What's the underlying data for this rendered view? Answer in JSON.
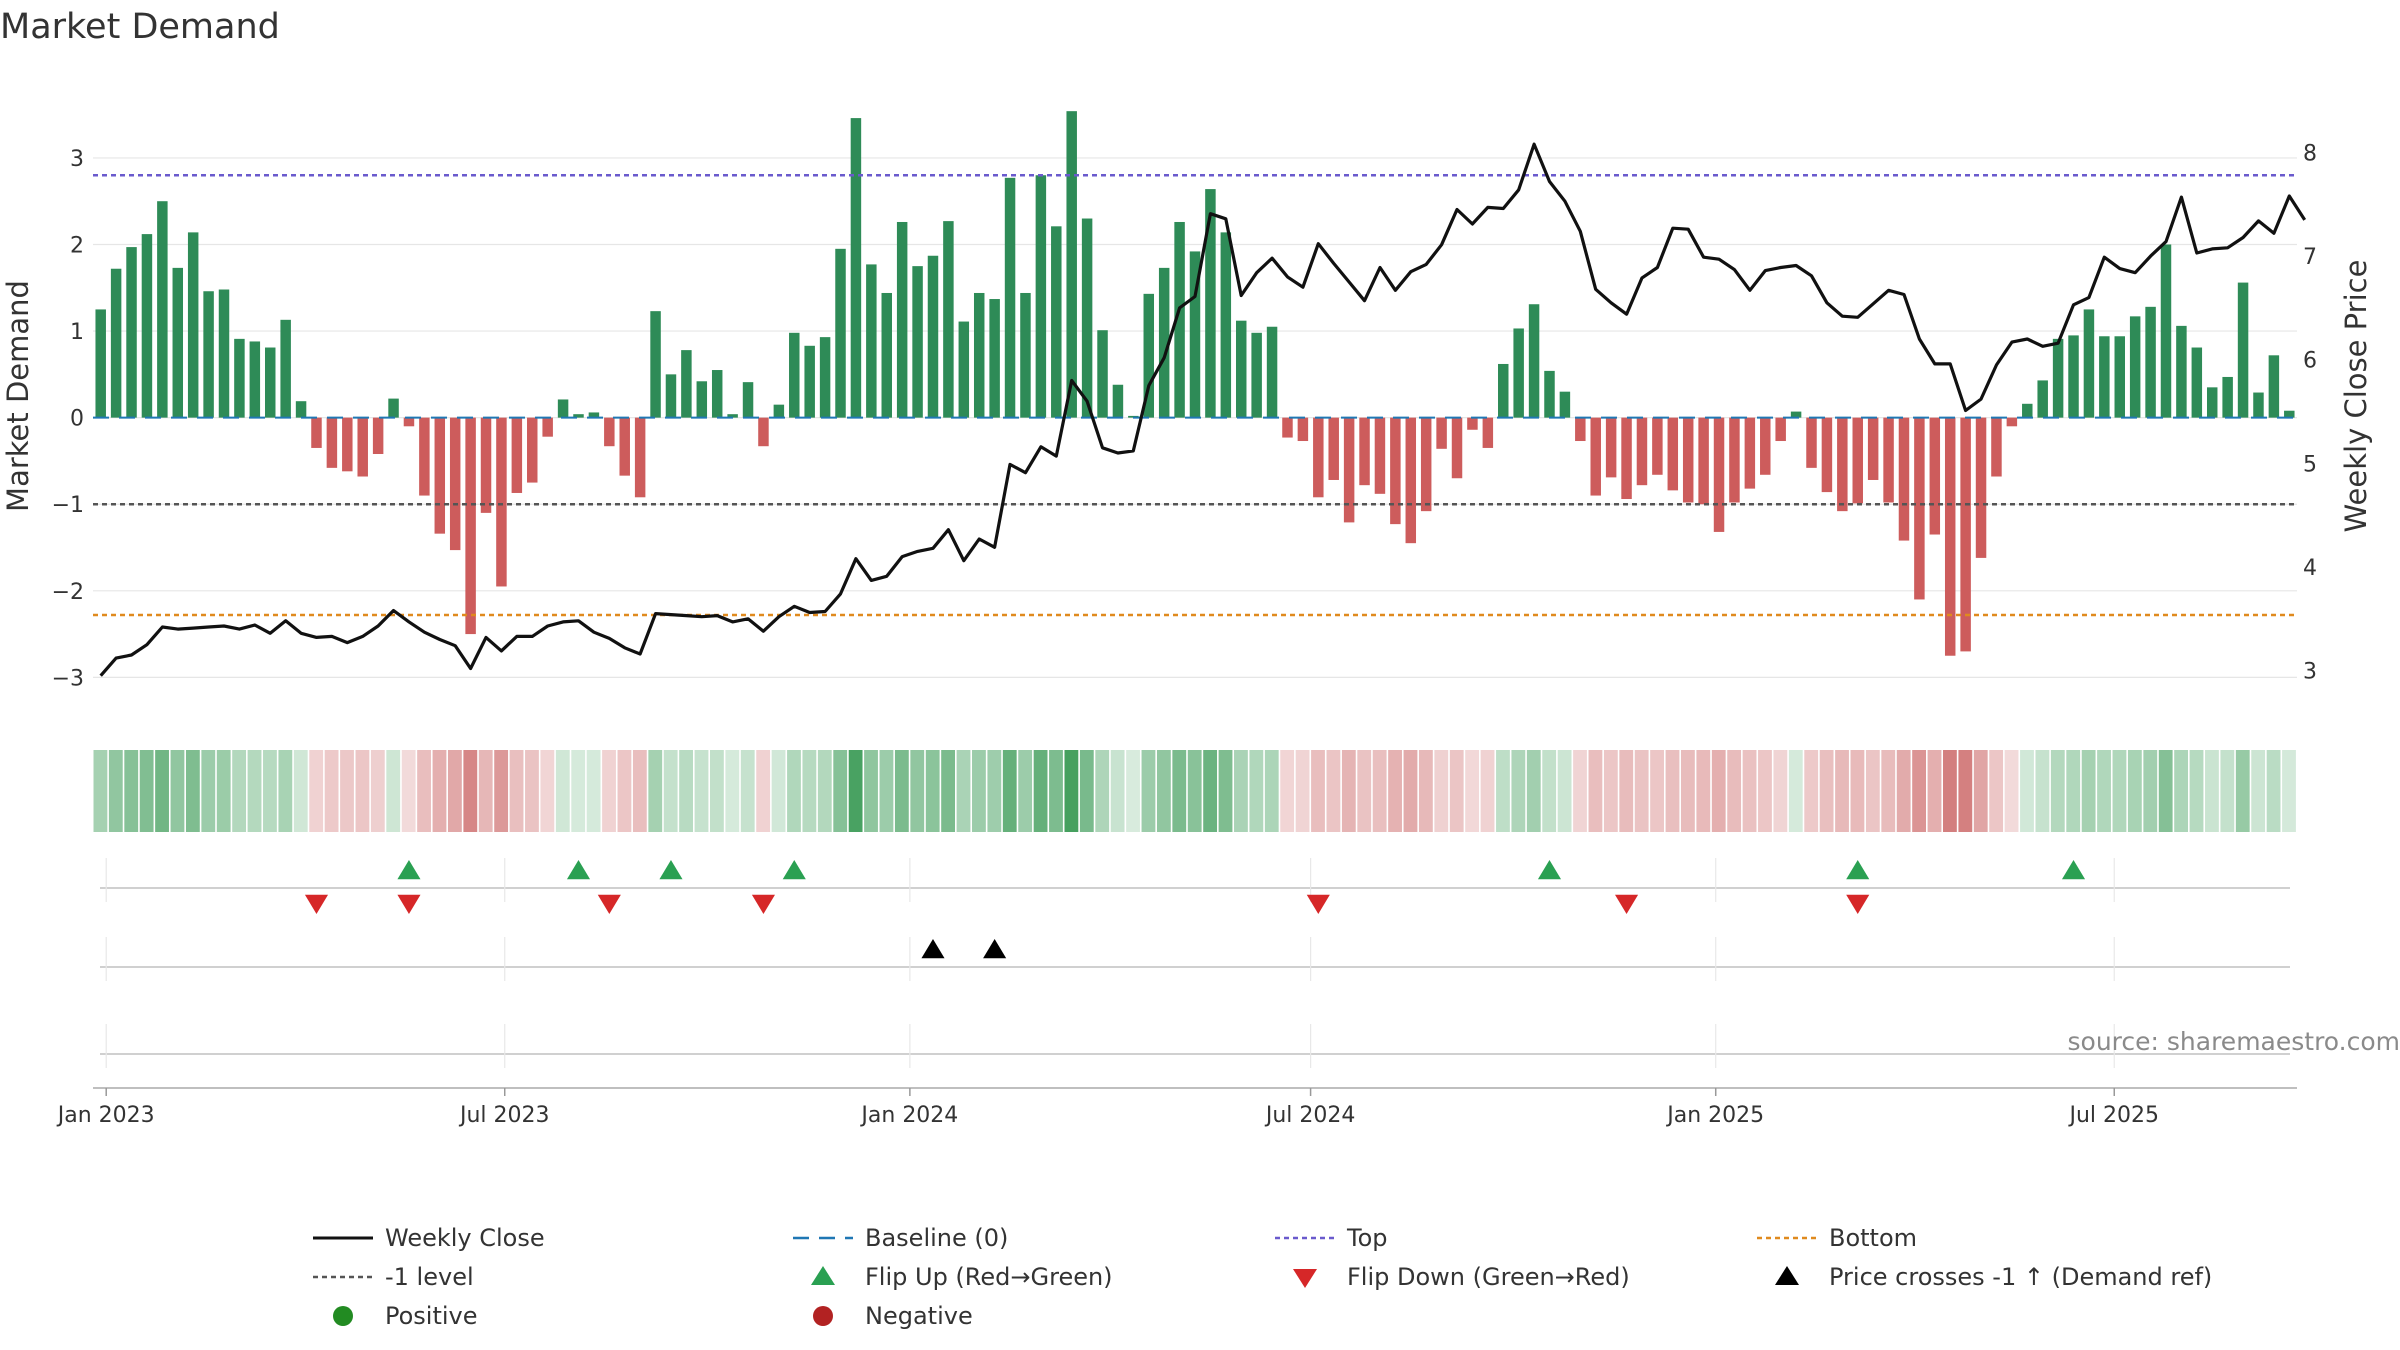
{
  "chart_data": {
    "type": "bar",
    "title": "Market Demand",
    "ylabel": "Market Demand",
    "ylabel_right": "Weekly Close Price",
    "ylim": [
      -3.4,
      3.9
    ],
    "ylim_right": [
      2.6,
      8.7
    ],
    "yticks": [
      -3,
      -2,
      -1,
      0,
      1,
      2,
      3
    ],
    "yticks_labels": [
      "−3",
      "−2",
      "−1",
      "0",
      "1",
      "2",
      "3"
    ],
    "yticks_right": [
      3,
      4,
      5,
      6,
      7,
      8
    ],
    "x_start_date": "2022-12-26",
    "x_end_date": "2025-09-22",
    "xticks": [
      {
        "date": "2023-01-01",
        "label": "Jan 2023"
      },
      {
        "date": "2023-07-01",
        "label": "Jul 2023"
      },
      {
        "date": "2024-01-01",
        "label": "Jan 2024"
      },
      {
        "date": "2024-07-01",
        "label": "Jul 2024"
      },
      {
        "date": "2025-01-01",
        "label": "Jan 2025"
      },
      {
        "date": "2025-07-01",
        "label": "Jul 2025"
      }
    ],
    "demand": [
      1.25,
      1.72,
      1.97,
      2.12,
      2.5,
      1.73,
      2.14,
      1.46,
      1.48,
      0.91,
      0.88,
      0.81,
      1.13,
      0.19,
      -0.35,
      -0.58,
      -0.62,
      -0.68,
      -0.42,
      0.22,
      -0.1,
      -0.9,
      -1.34,
      -1.53,
      -2.5,
      -1.1,
      -1.95,
      -0.87,
      -0.75,
      -0.22,
      0.21,
      0.04,
      0.06,
      -0.33,
      -0.67,
      -0.92,
      1.23,
      0.5,
      0.78,
      0.42,
      0.55,
      0.04,
      0.41,
      -0.33,
      0.15,
      0.98,
      0.83,
      0.93,
      1.95,
      3.46,
      1.77,
      1.44,
      2.26,
      1.75,
      1.87,
      2.27,
      1.11,
      1.44,
      1.37,
      2.77,
      1.44,
      2.8,
      2.21,
      3.54,
      2.3,
      1.01,
      0.38,
      0.02,
      1.43,
      1.73,
      2.26,
      1.92,
      2.64,
      2.14,
      1.12,
      0.98,
      1.05,
      -0.23,
      -0.27,
      -0.92,
      -0.72,
      -1.21,
      -0.78,
      -0.88,
      -1.23,
      -1.45,
      -1.08,
      -0.36,
      -0.7,
      -0.14,
      -0.35,
      0.62,
      1.03,
      1.31,
      0.54,
      0.3,
      -0.27,
      -0.9,
      -0.69,
      -0.94,
      -0.78,
      -0.66,
      -0.84,
      -0.98,
      -1.0,
      -1.32,
      -0.98,
      -0.82,
      -0.66,
      -0.27,
      0.07,
      -0.58,
      -0.86,
      -1.08,
      -0.99,
      -0.72,
      -0.98,
      -1.42,
      -2.1,
      -1.35,
      -2.75,
      -2.7,
      -1.62,
      -0.68,
      -0.1,
      0.16,
      0.43,
      0.91,
      0.95,
      1.25,
      0.94,
      0.94,
      1.17,
      1.28,
      2.0,
      1.06,
      0.81,
      0.35,
      0.47,
      1.56,
      0.29,
      0.72,
      0.08
    ],
    "weekly_close": [
      2.95,
      3.12,
      3.15,
      3.25,
      3.42,
      3.4,
      3.41,
      3.42,
      3.43,
      3.4,
      3.44,
      3.36,
      3.48,
      3.36,
      3.32,
      3.33,
      3.27,
      3.33,
      3.43,
      3.58,
      3.47,
      3.37,
      3.3,
      3.24,
      3.02,
      3.32,
      3.19,
      3.33,
      3.33,
      3.43,
      3.47,
      3.48,
      3.37,
      3.31,
      3.22,
      3.16,
      3.55,
      3.54,
      3.53,
      3.52,
      3.53,
      3.47,
      3.5,
      3.38,
      3.52,
      3.62,
      3.56,
      3.57,
      3.74,
      4.08,
      3.87,
      3.91,
      4.1,
      4.15,
      4.18,
      4.36,
      4.06,
      4.27,
      4.19,
      4.99,
      4.91,
      5.16,
      5.07,
      5.8,
      5.6,
      5.15,
      5.1,
      5.12,
      5.75,
      6.02,
      6.5,
      6.61,
      7.41,
      7.36,
      6.62,
      6.84,
      6.98,
      6.8,
      6.7,
      7.12,
      6.93,
      6.75,
      6.57,
      6.89,
      6.67,
      6.85,
      6.92,
      7.11,
      7.45,
      7.31,
      7.47,
      7.46,
      7.64,
      8.08,
      7.72,
      7.53,
      7.24,
      6.68,
      6.55,
      6.44,
      6.79,
      6.89,
      7.27,
      7.26,
      6.99,
      6.97,
      6.87,
      6.67,
      6.86,
      6.89,
      6.91,
      6.81,
      6.55,
      6.42,
      6.41,
      6.54,
      6.67,
      6.63,
      6.2,
      5.96,
      5.96,
      5.51,
      5.62,
      5.95,
      6.17,
      6.2,
      6.13,
      6.16,
      6.53,
      6.6,
      6.99,
      6.88,
      6.84,
      7.0,
      7.14,
      7.57,
      7.03,
      7.07,
      7.08,
      7.18,
      7.34,
      7.22,
      7.58,
      7.35
    ],
    "reference_lines": [
      {
        "name": "Baseline (0)",
        "value": 0,
        "color": "#1f77b4"
      },
      {
        "name": "Top",
        "value": 2.8,
        "color": "#6a5acd"
      },
      {
        "name": "-1 level",
        "value": -1,
        "color": "#555555"
      },
      {
        "name": "Bottom",
        "value": -2.28,
        "color": "#e08a1e"
      }
    ],
    "flip_up_weeks": [
      20,
      31,
      37,
      45,
      94,
      114,
      128
    ],
    "flip_down_weeks": [
      14,
      20,
      33,
      43,
      79,
      99,
      114
    ],
    "price_cross_weeks": [
      54,
      58
    ],
    "source": "source: sharemaestro.com",
    "legend": [
      {
        "key": "weekly_close",
        "label": "Weekly Close"
      },
      {
        "key": "baseline",
        "label": "Baseline (0)"
      },
      {
        "key": "top",
        "label": "Top"
      },
      {
        "key": "bottom",
        "label": "Bottom"
      },
      {
        "key": "minus1",
        "label": "-1 level"
      },
      {
        "key": "flip_up",
        "label": "Flip Up (Red→Green)"
      },
      {
        "key": "flip_down",
        "label": "Flip Down (Green→Red)"
      },
      {
        "key": "price_cross",
        "label": "Price crosses -1 ↑ (Demand ref)"
      },
      {
        "key": "positive",
        "label": "Positive"
      },
      {
        "key": "negative",
        "label": "Negative"
      }
    ],
    "colors": {
      "positive_bar": "#2e8b57",
      "negative_bar": "#cd5c5c",
      "price_line": "#111111",
      "flip_up": "#2aa052",
      "flip_down": "#d62728",
      "price_cross": "#000000",
      "positive_dot": "#228b22",
      "negative_dot": "#b22222",
      "grid": "#e6e6e6"
    }
  }
}
